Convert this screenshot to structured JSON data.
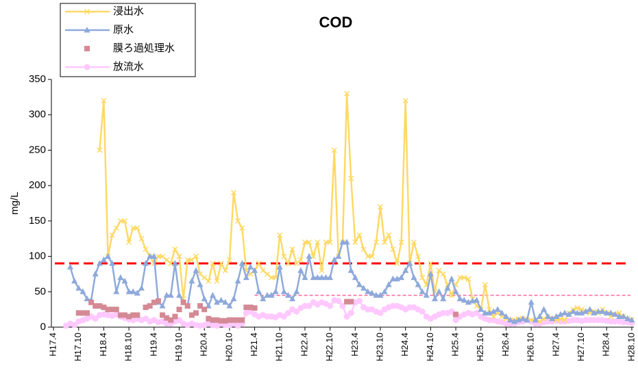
{
  "chart_data": {
    "type": "line",
    "title": "COD",
    "y_label": "mg/L",
    "ylim": [
      0,
      350
    ],
    "yticks": [
      0,
      50,
      100,
      150,
      200,
      250,
      300,
      350
    ],
    "grid": false,
    "legend": "upper left",
    "categories": [
      "H17.4",
      null,
      null,
      null,
      null,
      null,
      "H17.10",
      null,
      null,
      null,
      null,
      null,
      "H18.4",
      null,
      null,
      null,
      null,
      null,
      "H18.10",
      null,
      null,
      null,
      null,
      null,
      "H19.4",
      null,
      null,
      null,
      null,
      null,
      "H19.10",
      null,
      null,
      null,
      null,
      null,
      "H20.4",
      null,
      null,
      null,
      null,
      null,
      "H20.10",
      null,
      null,
      null,
      null,
      null,
      "H21.4",
      null,
      null,
      null,
      null,
      null,
      "H21.10",
      null,
      null,
      null,
      null,
      null,
      "H22.4",
      null,
      null,
      null,
      null,
      null,
      "H22.10",
      null,
      null,
      null,
      null,
      null,
      "H23.4",
      null,
      null,
      null,
      null,
      null,
      "H23.10",
      null,
      null,
      null,
      null,
      null,
      "H24.4",
      null,
      null,
      null,
      null,
      null,
      "H24.10",
      null,
      null,
      null,
      null,
      null,
      "H25.4",
      null,
      null,
      null,
      null,
      null,
      "H25.10",
      null,
      null,
      null,
      null,
      null,
      "H26.4",
      null,
      null,
      null,
      null,
      null,
      "H26.10",
      null,
      null,
      null,
      null,
      null,
      "H27.4",
      null,
      null,
      null,
      null,
      null,
      "H27.10",
      null,
      null,
      null,
      null,
      null,
      "H28.4",
      null,
      null,
      null,
      null,
      null,
      "H28.10"
    ],
    "series": [
      {
        "name": "浸出水",
        "color": "#ffd966",
        "marker": "x",
        "line": true,
        "values": [
          null,
          null,
          null,
          null,
          null,
          null,
          null,
          null,
          null,
          null,
          null,
          250,
          320,
          100,
          130,
          140,
          150,
          150,
          120,
          140,
          140,
          125,
          110,
          100,
          90,
          100,
          100,
          95,
          90,
          110,
          100,
          40,
          95,
          95,
          100,
          75,
          70,
          65,
          90,
          65,
          90,
          80,
          95,
          190,
          150,
          140,
          80,
          75,
          80,
          90,
          80,
          75,
          70,
          70,
          130,
          100,
          90,
          110,
          90,
          95,
          120,
          120,
          100,
          120,
          80,
          120,
          120,
          250,
          100,
          120,
          330,
          210,
          120,
          130,
          110,
          100,
          100,
          120,
          170,
          120,
          130,
          110,
          90,
          120,
          320,
          90,
          120,
          100,
          70,
          60,
          90,
          50,
          80,
          75,
          60,
          45,
          60,
          70,
          70,
          68,
          40,
          30,
          25,
          60,
          25,
          15,
          20,
          15,
          12,
          10,
          10,
          12,
          12,
          10,
          10,
          10,
          8,
          12,
          15,
          12,
          10,
          12,
          10,
          20,
          25,
          27,
          25,
          22,
          20,
          22,
          20,
          25,
          20,
          15,
          18,
          20,
          15,
          12,
          10
        ]
      },
      {
        "name": "原水",
        "color": "#8ea9db",
        "marker": "triangle",
        "line": true,
        "values": [
          null,
          null,
          null,
          null,
          85,
          65,
          55,
          50,
          40,
          38,
          75,
          90,
          95,
          100,
          90,
          50,
          70,
          65,
          50,
          50,
          48,
          55,
          90,
          100,
          100,
          35,
          30,
          45,
          45,
          90,
          45,
          35,
          30,
          65,
          80,
          60,
          40,
          30,
          45,
          35,
          38,
          35,
          30,
          40,
          65,
          90,
          70,
          85,
          80,
          50,
          40,
          45,
          45,
          50,
          85,
          50,
          45,
          40,
          50,
          80,
          70,
          100,
          70,
          70,
          70,
          70,
          70,
          95,
          100,
          120,
          120,
          80,
          70,
          60,
          55,
          50,
          48,
          45,
          45,
          50,
          60,
          68,
          68,
          70,
          80,
          90,
          70,
          60,
          50,
          45,
          75,
          40,
          50,
          40,
          55,
          68,
          50,
          40,
          38,
          35,
          37,
          38,
          25,
          20,
          20,
          22,
          25,
          20,
          15,
          10,
          8,
          10,
          12,
          10,
          35,
          10,
          15,
          25,
          15,
          12,
          15,
          18,
          20,
          18,
          22,
          20,
          20,
          22,
          25,
          20,
          22,
          22,
          20,
          20,
          18,
          15,
          15,
          12,
          10
        ]
      },
      {
        "name": "膜ろ過処理水",
        "color": "#d48a94",
        "marker": "square",
        "line": false,
        "values": [
          null,
          null,
          null,
          null,
          null,
          null,
          20,
          20,
          20,
          35,
          30,
          30,
          28,
          25,
          25,
          25,
          17,
          17,
          15,
          17,
          17,
          null,
          28,
          30,
          35,
          37,
          17,
          13,
          10,
          15,
          25,
          35,
          30,
          17,
          20,
          30,
          25,
          12,
          10,
          10,
          9,
          9,
          10,
          10,
          10,
          10,
          28,
          28,
          27,
          null,
          null,
          null,
          null,
          null,
          null,
          null,
          null,
          null,
          null,
          null,
          null,
          null,
          null,
          null,
          null,
          null,
          null,
          null,
          null,
          null,
          36,
          36,
          null,
          null,
          null,
          null,
          null,
          null,
          null,
          null,
          null,
          null,
          null,
          null,
          null,
          null,
          null,
          null,
          null,
          null,
          null,
          null,
          null,
          null,
          null,
          null,
          18,
          null,
          null,
          null,
          null,
          null,
          null,
          null,
          null,
          null,
          null,
          null,
          null,
          null,
          null,
          null,
          null,
          null,
          null,
          null,
          null,
          null,
          null,
          null,
          null,
          null,
          null,
          null,
          null,
          null,
          null,
          null,
          null,
          null,
          null,
          null,
          null,
          null,
          null,
          null,
          null,
          null,
          null
        ]
      },
      {
        "name": "放流水",
        "color": "#ffc8ff",
        "marker": "circle",
        "line": true,
        "values": [
          null,
          null,
          null,
          2,
          5,
          3,
          8,
          10,
          12,
          15,
          12,
          17,
          18,
          17,
          16,
          18,
          15,
          13,
          11,
          10,
          12,
          10,
          12,
          8,
          10,
          7,
          8,
          5,
          5,
          8,
          10,
          5,
          3,
          5,
          3,
          2,
          3,
          5,
          3,
          2,
          5,
          3,
          3,
          5,
          2,
          5,
          20,
          22,
          18,
          15,
          17,
          15,
          15,
          14,
          17,
          15,
          20,
          25,
          22,
          27,
          30,
          30,
          35,
          32,
          35,
          33,
          30,
          38,
          37,
          30,
          15,
          20,
          35,
          37,
          28,
          25,
          25,
          22,
          20,
          25,
          28,
          30,
          30,
          28,
          25,
          28,
          28,
          25,
          22,
          15,
          12,
          15,
          18,
          20,
          20,
          22,
          10,
          15,
          18,
          20,
          18,
          20,
          15,
          12,
          10,
          10,
          8,
          7,
          5,
          5,
          5,
          7,
          8,
          10,
          8,
          5,
          5,
          7,
          8,
          8,
          9,
          8,
          8,
          9,
          10,
          10,
          9,
          10,
          10,
          10,
          10,
          10,
          9,
          8,
          8,
          8,
          7,
          7,
          6
        ]
      }
    ],
    "reference_lines": [
      {
        "value": 90,
        "color": "#ff0000",
        "style": "long-dash"
      },
      {
        "value": 45,
        "color": "#ff6699",
        "style": "short-dash",
        "from": "H21.4"
      }
    ]
  }
}
